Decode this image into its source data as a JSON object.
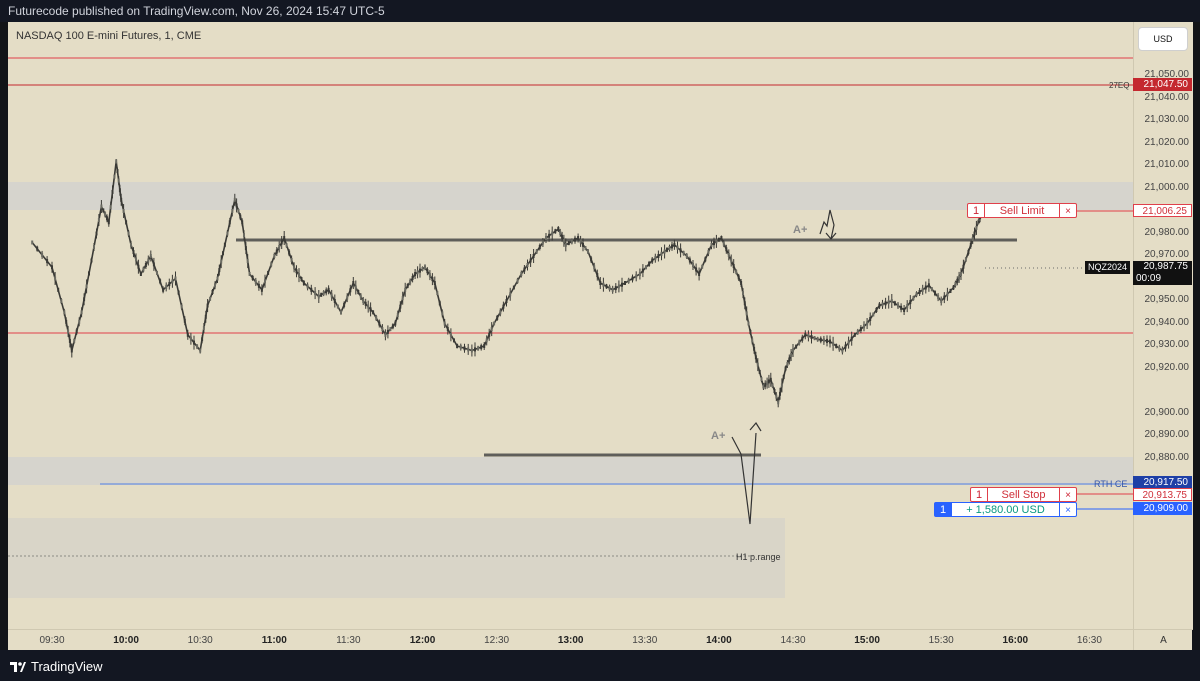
{
  "header": {
    "text": "Futurecode published on TradingView.com, Nov 26, 2024 15:47 UTC-5"
  },
  "chart": {
    "symbol_title": "NASDAQ 100 E-mini Futures, 1, CME",
    "currency": "USD",
    "corner_label": "A"
  },
  "price_axis": {
    "ticks": [
      "21,050.00",
      "21,040.00",
      "21,030.00",
      "21,020.00",
      "21,010.00",
      "21,000.00",
      "20,990.00",
      "20,980.00",
      "20,970.00",
      "20,960.00",
      "20,950.00",
      "20,940.00",
      "20,930.00",
      "20,920.00",
      "20,900.00",
      "20,890.00",
      "20,880.00"
    ]
  },
  "time_axis": {
    "ticks": [
      {
        "label": "09:30",
        "bold": false
      },
      {
        "label": "10:00",
        "bold": true
      },
      {
        "label": "10:30",
        "bold": false
      },
      {
        "label": "11:00",
        "bold": true
      },
      {
        "label": "11:30",
        "bold": false
      },
      {
        "label": "12:00",
        "bold": true
      },
      {
        "label": "12:30",
        "bold": false
      },
      {
        "label": "13:00",
        "bold": true
      },
      {
        "label": "13:30",
        "bold": false
      },
      {
        "label": "14:00",
        "bold": true
      },
      {
        "label": "14:30",
        "bold": false
      },
      {
        "label": "15:00",
        "bold": true
      },
      {
        "label": "15:30",
        "bold": false
      },
      {
        "label": "16:00",
        "bold": true
      },
      {
        "label": "16:30",
        "bold": false
      }
    ]
  },
  "tags": {
    "eq_label": "27EQ",
    "eq_price": "21,047.50",
    "sell_limit_price": "21,006.25",
    "last_symbol": "NQZ2024",
    "last_price": "20,987.75",
    "countdown": "00:09",
    "rth_label": "RTH CE",
    "rth_price": "20,917.50",
    "sell_stop_price": "20,913.75",
    "position_price": "20,909.00"
  },
  "orders": {
    "sell_limit": {
      "qty": "1",
      "label": "Sell Limit",
      "close": "×"
    },
    "sell_stop": {
      "qty": "1",
      "label": "Sell Stop",
      "close": "×"
    },
    "position": {
      "qty": "1",
      "label": "+ 1,580.00 USD",
      "close": "×"
    }
  },
  "annotations": {
    "a_plus_1": "A+",
    "a_plus_2": "A+",
    "range_label": "H1 p.range"
  },
  "footer": {
    "brand": "TradingView"
  },
  "colors": {
    "background": "#e4ddc6",
    "red_line": "#e0404b",
    "blue_line": "#2962ff",
    "candle": "#3a3a36",
    "zone": "#d3d0c6"
  },
  "chart_data": {
    "type": "candlestick",
    "title": "NASDAQ 100 E-mini Futures, 1, CME",
    "ylim": [
      20872,
      21062
    ],
    "x_ticks": [
      "09:30",
      "10:00",
      "10:30",
      "11:00",
      "11:30",
      "12:00",
      "12:30",
      "13:00",
      "13:30",
      "14:00",
      "14:30",
      "15:00",
      "15:30",
      "16:00",
      "16:30"
    ],
    "path": [
      [
        "09:22",
        20976
      ],
      [
        "09:30",
        20965
      ],
      [
        "09:35",
        20945
      ],
      [
        "09:38",
        20928
      ],
      [
        "09:42",
        20945
      ],
      [
        "09:46",
        20968
      ],
      [
        "09:50",
        20992
      ],
      [
        "09:53",
        20985
      ],
      [
        "09:56",
        21012
      ],
      [
        "09:58",
        20995
      ],
      [
        "10:02",
        20975
      ],
      [
        "10:06",
        20962
      ],
      [
        "10:10",
        20970
      ],
      [
        "10:15",
        20955
      ],
      [
        "10:20",
        20960
      ],
      [
        "10:25",
        20935
      ],
      [
        "10:30",
        20928
      ],
      [
        "10:33",
        20948
      ],
      [
        "10:37",
        20960
      ],
      [
        "10:40",
        20975
      ],
      [
        "10:44",
        20995
      ],
      [
        "10:47",
        20985
      ],
      [
        "10:50",
        20962
      ],
      [
        "10:55",
        20955
      ],
      [
        "11:00",
        20970
      ],
      [
        "11:04",
        20978
      ],
      [
        "11:08",
        20965
      ],
      [
        "11:12",
        20958
      ],
      [
        "11:18",
        20952
      ],
      [
        "11:22",
        20955
      ],
      [
        "11:27",
        20945
      ],
      [
        "11:32",
        20958
      ],
      [
        "11:36",
        20950
      ],
      [
        "11:40",
        20945
      ],
      [
        "11:45",
        20935
      ],
      [
        "11:49",
        20940
      ],
      [
        "11:53",
        20955
      ],
      [
        "11:57",
        20962
      ],
      [
        "12:01",
        20965
      ],
      [
        "12:05",
        20958
      ],
      [
        "12:09",
        20940
      ],
      [
        "12:14",
        20930
      ],
      [
        "12:20",
        20928
      ],
      [
        "12:25",
        20930
      ],
      [
        "12:29",
        20940
      ],
      [
        "12:34",
        20950
      ],
      [
        "12:40",
        20962
      ],
      [
        "12:45",
        20970
      ],
      [
        "12:50",
        20978
      ],
      [
        "12:55",
        20982
      ],
      [
        "12:58",
        20975
      ],
      [
        "13:03",
        20978
      ],
      [
        "13:07",
        20972
      ],
      [
        "13:12",
        20958
      ],
      [
        "13:17",
        20955
      ],
      [
        "13:22",
        20958
      ],
      [
        "13:28",
        20962
      ],
      [
        "13:33",
        20968
      ],
      [
        "13:38",
        20972
      ],
      [
        "13:42",
        20975
      ],
      [
        "13:47",
        20970
      ],
      [
        "13:52",
        20962
      ],
      [
        "13:57",
        20975
      ],
      [
        "14:01",
        20978
      ],
      [
        "14:05",
        20968
      ],
      [
        "14:09",
        20958
      ],
      [
        "14:12",
        20940
      ],
      [
        "14:15",
        20925
      ],
      [
        "14:18",
        20912
      ],
      [
        "14:21",
        20915
      ],
      [
        "14:24",
        20905
      ],
      [
        "14:27",
        20920
      ],
      [
        "14:30",
        20928
      ],
      [
        "14:35",
        20935
      ],
      [
        "14:40",
        20933
      ],
      [
        "14:45",
        20932
      ],
      [
        "14:50",
        20928
      ],
      [
        "14:55",
        20935
      ],
      [
        "15:00",
        20940
      ],
      [
        "15:05",
        20948
      ],
      [
        "15:10",
        20950
      ],
      [
        "15:15",
        20946
      ],
      [
        "15:20",
        20953
      ],
      [
        "15:25",
        20957
      ],
      [
        "15:30",
        20950
      ],
      [
        "15:35",
        20956
      ],
      [
        "15:38",
        20962
      ],
      [
        "15:42",
        20975
      ],
      [
        "15:45",
        20985
      ],
      [
        "15:46",
        20988
      ]
    ],
    "horizontal_levels": [
      {
        "label": "27EQ",
        "value": 21047.5
      },
      {
        "label": "Sell Limit",
        "value": 21006.25
      },
      {
        "label": "RTH CE",
        "value": 20917.5
      },
      {
        "label": "Sell Stop",
        "value": 20913.75
      },
      {
        "label": "Position",
        "value": 20909.0
      }
    ]
  }
}
